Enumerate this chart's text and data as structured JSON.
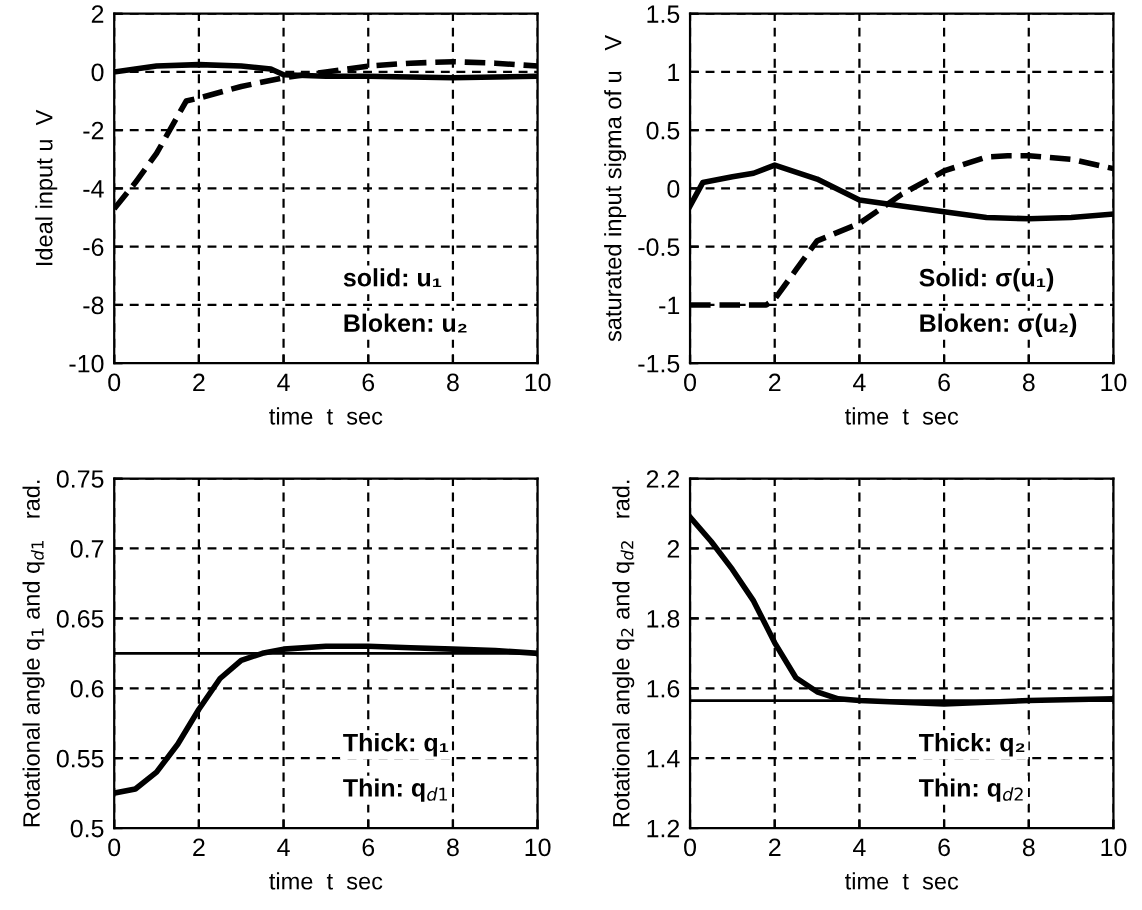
{
  "chart_data": [
    {
      "type": "line",
      "xlabel": "time  t  sec",
      "ylabel": "Ideal input u  V",
      "xlim": [
        0,
        10
      ],
      "xticks": [
        0,
        2,
        4,
        6,
        8,
        10
      ],
      "ylim": [
        -10,
        2
      ],
      "yticks": [
        -10,
        -8,
        -6,
        -4,
        -2,
        0,
        2
      ],
      "grid": true,
      "annotations": [
        "solid: u₁",
        "Bloken: u₂"
      ],
      "series": [
        {
          "color": "#000000",
          "line_style": "solid",
          "x": [
            0,
            0.5,
            1,
            2,
            3,
            3.7,
            4,
            5,
            6,
            8,
            10
          ],
          "values": [
            0,
            0.1,
            0.2,
            0.25,
            0.2,
            0.1,
            -0.1,
            -0.15,
            -0.15,
            -0.2,
            -0.15
          ]
        },
        {
          "color": "#000000",
          "line_style": "dashed",
          "x": [
            0,
            0.5,
            1,
            1.7,
            2,
            3,
            4,
            5,
            6,
            7,
            8,
            9,
            10
          ],
          "values": [
            -4.7,
            -3.8,
            -2.8,
            -1,
            -0.9,
            -0.5,
            -0.2,
            0,
            0.2,
            0.3,
            0.35,
            0.3,
            0.2
          ]
        }
      ]
    },
    {
      "type": "line",
      "xlabel": "time  t  sec",
      "ylabel": "saturated input sigma of u   V",
      "xlim": [
        0,
        10
      ],
      "xticks": [
        0,
        2,
        4,
        6,
        8,
        10
      ],
      "ylim": [
        -1.5,
        1.5
      ],
      "yticks": [
        -1.5,
        -1,
        -0.5,
        0,
        0.5,
        1,
        1.5
      ],
      "grid": true,
      "annotations": [
        "Solid: σ(u₁)",
        "Bloken: σ(u₂)"
      ],
      "series": [
        {
          "color": "#000000",
          "line_style": "solid",
          "x": [
            0,
            0.3,
            1,
            1.5,
            2,
            3,
            4,
            5,
            6,
            7,
            8,
            9,
            10
          ],
          "values": [
            -0.15,
            0.05,
            0.1,
            0.13,
            0.2,
            0.08,
            -0.1,
            -0.15,
            -0.2,
            -0.25,
            -0.26,
            -0.25,
            -0.22
          ]
        },
        {
          "color": "#000000",
          "line_style": "dashed",
          "x": [
            0,
            1.8,
            2,
            2.5,
            3,
            4,
            5,
            6,
            7,
            7.5,
            8,
            9,
            10
          ],
          "values": [
            -1,
            -1,
            -0.95,
            -0.7,
            -0.45,
            -0.3,
            -0.05,
            0.15,
            0.27,
            0.28,
            0.28,
            0.25,
            0.17
          ]
        }
      ]
    },
    {
      "type": "line",
      "xlabel": "time  t  sec",
      "ylabel": "Rotational angle q$_{1}$ and q$_{d1}$   rad.",
      "xlim": [
        0,
        10
      ],
      "xticks": [
        0,
        2,
        4,
        6,
        8,
        10
      ],
      "ylim": [
        0.5,
        0.75
      ],
      "yticks": [
        0.5,
        0.55,
        0.6,
        0.65,
        0.7,
        0.75
      ],
      "grid": true,
      "annotations": [
        "Thick: q₁",
        "Thin: q$_{d1}$"
      ],
      "series": [
        {
          "color": "#000000",
          "line_style": "solid",
          "x": [
            0,
            0.5,
            1,
            1.5,
            2,
            2.5,
            3,
            3.5,
            4,
            5,
            6,
            7,
            8,
            9,
            10
          ],
          "values": [
            0.525,
            0.528,
            0.54,
            0.56,
            0.585,
            0.607,
            0.62,
            0.625,
            0.628,
            0.63,
            0.63,
            0.629,
            0.628,
            0.627,
            0.625
          ]
        },
        {
          "color": "#000000",
          "line_style": "solid",
          "x": [
            0,
            10
          ],
          "values": [
            0.625,
            0.625
          ]
        }
      ]
    },
    {
      "type": "line",
      "xlabel": "time  t  sec",
      "ylabel": "Rotational angle q$_{2}$ and q$_{d2}$   rad.",
      "xlim": [
        0,
        10
      ],
      "xticks": [
        0,
        2,
        4,
        6,
        8,
        10
      ],
      "ylim": [
        1.2,
        2.2
      ],
      "yticks": [
        1.2,
        1.4,
        1.6,
        1.8,
        2,
        2.2
      ],
      "grid": true,
      "annotations": [
        "Thick: q₂",
        "Thin: q$_{d2}$"
      ],
      "series": [
        {
          "color": "#000000",
          "line_style": "solid",
          "x": [
            0,
            0.5,
            1,
            1.5,
            2,
            2.5,
            3,
            3.5,
            4,
            6,
            8,
            10
          ],
          "values": [
            2.09,
            2.02,
            1.94,
            1.85,
            1.73,
            1.63,
            1.59,
            1.57,
            1.565,
            1.555,
            1.565,
            1.57
          ]
        },
        {
          "color": "#000000",
          "line_style": "solid",
          "x": [
            0,
            10
          ],
          "values": [
            1.565,
            1.565
          ]
        }
      ]
    }
  ]
}
